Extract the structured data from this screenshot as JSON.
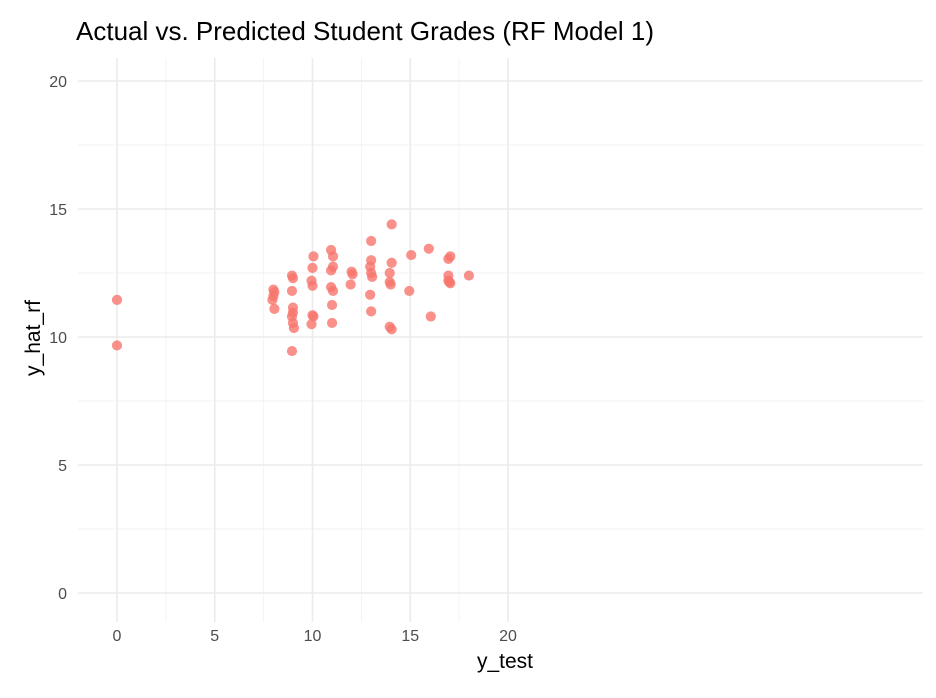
{
  "chart_data": {
    "type": "scatter",
    "title": "Actual vs. Predicted Student Grades (RF Model 1)",
    "xlabel": "y_test",
    "ylabel": "y_hat_rf",
    "xlim": [
      0,
      20
    ],
    "ylim": [
      0,
      20
    ],
    "x_ticks": [
      "0",
      "5",
      "10",
      "15",
      "20"
    ],
    "y_ticks": [
      "0",
      "5",
      "10",
      "15",
      "20"
    ],
    "grid": true,
    "legend": false,
    "point_color": "#F8766D",
    "points": [
      {
        "x": 0.0,
        "y": 11.45
      },
      {
        "x": 0.0,
        "y": 9.67
      },
      {
        "x": 7.95,
        "y": 11.45
      },
      {
        "x": 8.0,
        "y": 11.6
      },
      {
        "x": 8.0,
        "y": 11.85
      },
      {
        "x": 8.05,
        "y": 11.75
      },
      {
        "x": 8.05,
        "y": 11.1
      },
      {
        "x": 8.95,
        "y": 12.4
      },
      {
        "x": 9.0,
        "y": 12.3
      },
      {
        "x": 8.95,
        "y": 11.8
      },
      {
        "x": 9.0,
        "y": 11.15
      },
      {
        "x": 9.0,
        "y": 10.95
      },
      {
        "x": 8.95,
        "y": 10.8
      },
      {
        "x": 9.0,
        "y": 10.55
      },
      {
        "x": 9.05,
        "y": 10.35
      },
      {
        "x": 8.95,
        "y": 9.45
      },
      {
        "x": 10.05,
        "y": 13.15
      },
      {
        "x": 10.0,
        "y": 12.7
      },
      {
        "x": 9.95,
        "y": 12.2
      },
      {
        "x": 10.0,
        "y": 12.0
      },
      {
        "x": 10.0,
        "y": 10.85
      },
      {
        "x": 10.05,
        "y": 10.8
      },
      {
        "x": 9.95,
        "y": 10.5
      },
      {
        "x": 10.95,
        "y": 13.4
      },
      {
        "x": 11.05,
        "y": 13.15
      },
      {
        "x": 11.05,
        "y": 12.75
      },
      {
        "x": 10.95,
        "y": 12.6
      },
      {
        "x": 10.95,
        "y": 11.95
      },
      {
        "x": 11.05,
        "y": 11.8
      },
      {
        "x": 11.0,
        "y": 11.25
      },
      {
        "x": 11.0,
        "y": 10.55
      },
      {
        "x": 12.0,
        "y": 12.55
      },
      {
        "x": 12.05,
        "y": 12.45
      },
      {
        "x": 11.95,
        "y": 12.05
      },
      {
        "x": 13.0,
        "y": 13.75
      },
      {
        "x": 13.0,
        "y": 13.0
      },
      {
        "x": 12.95,
        "y": 12.75
      },
      {
        "x": 13.0,
        "y": 12.5
      },
      {
        "x": 13.05,
        "y": 12.35
      },
      {
        "x": 12.95,
        "y": 11.65
      },
      {
        "x": 13.0,
        "y": 11.0
      },
      {
        "x": 14.05,
        "y": 14.4
      },
      {
        "x": 14.05,
        "y": 12.9
      },
      {
        "x": 13.95,
        "y": 12.5
      },
      {
        "x": 13.95,
        "y": 12.15
      },
      {
        "x": 14.0,
        "y": 12.05
      },
      {
        "x": 13.95,
        "y": 10.4
      },
      {
        "x": 14.05,
        "y": 10.3
      },
      {
        "x": 15.05,
        "y": 13.2
      },
      {
        "x": 14.95,
        "y": 11.8
      },
      {
        "x": 15.95,
        "y": 13.45
      },
      {
        "x": 16.05,
        "y": 10.8
      },
      {
        "x": 17.05,
        "y": 13.15
      },
      {
        "x": 16.95,
        "y": 13.05
      },
      {
        "x": 16.95,
        "y": 12.4
      },
      {
        "x": 16.95,
        "y": 12.2
      },
      {
        "x": 17.0,
        "y": 12.15
      },
      {
        "x": 17.05,
        "y": 12.1
      },
      {
        "x": 18.0,
        "y": 12.4
      }
    ]
  }
}
